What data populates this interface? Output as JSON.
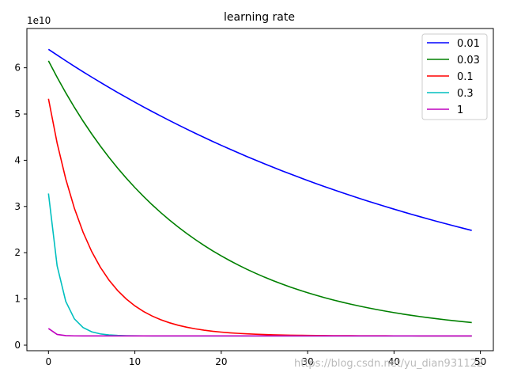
{
  "chart_data": {
    "type": "line",
    "title": "learning rate",
    "xlabel": "",
    "ylabel": "",
    "y_offset_label": "1e10",
    "xlim": [
      -2.5,
      51.5
    ],
    "ylim": [
      -1200000000.0,
      68500000000.0
    ],
    "x_ticks": [
      0,
      10,
      20,
      30,
      40,
      50
    ],
    "y_ticks": [
      0,
      10000000000.0,
      20000000000.0,
      30000000000.0,
      40000000000.0,
      50000000000.0,
      60000000000.0
    ],
    "y_tick_labels": [
      "0",
      "1",
      "2",
      "3",
      "4",
      "5",
      "6"
    ],
    "grid": false,
    "legend_position": "top-right",
    "series": [
      {
        "name": "0.01",
        "color": "#0000ff",
        "model": {
          "a": 2000000000.0,
          "b": 62000000000.0,
          "r": 0.97981
        }
      },
      {
        "name": "0.03",
        "color": "#008000",
        "model": {
          "a": 2000000000.0,
          "b": 59500000000.0,
          "r": 0.94015
        }
      },
      {
        "name": "0.1",
        "color": "#ff0000",
        "model": {
          "a": 2000000000.0,
          "b": 51300000000.0,
          "r": 0.8134
        }
      },
      {
        "name": "0.3",
        "color": "#00bfbf",
        "model": {
          "a": 2000000000.0,
          "b": 30800000000.0,
          "r": 0.4925
        }
      },
      {
        "name": "1",
        "color": "#bf00bf",
        "model": {
          "a": 2000000000.0,
          "b": 1600000000.0,
          "r": 0.2
        }
      }
    ],
    "x_points": 50
  },
  "watermark": "https://blog.csdn.net/yu_dian931122"
}
